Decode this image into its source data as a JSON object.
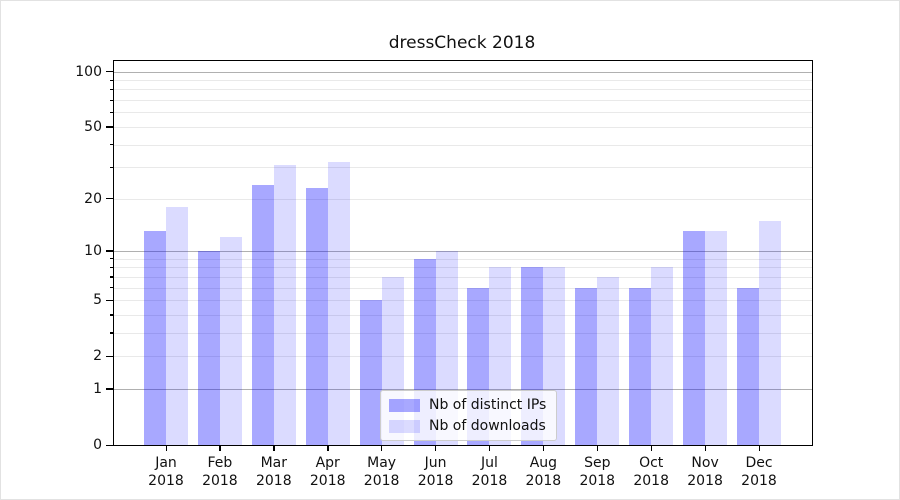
{
  "title": "dressCheck 2018",
  "chart_data": {
    "type": "bar",
    "title": "dressCheck 2018",
    "categories": [
      "Jan",
      "Feb",
      "Mar",
      "Apr",
      "May",
      "Jun",
      "Jul",
      "Aug",
      "Sep",
      "Oct",
      "Nov",
      "Dec"
    ],
    "category_year": "2018",
    "series": [
      {
        "name": "Nb of distinct IPs",
        "color": "rgba(0,0,255,0.34)",
        "values": [
          13,
          10,
          24,
          23,
          5,
          9,
          6,
          8,
          6,
          6,
          13,
          6
        ]
      },
      {
        "name": "Nb of downloads",
        "color": "rgba(0,0,255,0.14)",
        "values": [
          18,
          12,
          31,
          32,
          7,
          10,
          8,
          8,
          7,
          8,
          13,
          15
        ]
      }
    ],
    "yscale": "log10(1+v)",
    "ylim": [
      0,
      110
    ],
    "yticks": [
      0,
      1,
      2,
      5,
      10,
      20,
      50,
      100
    ],
    "grid": {
      "major_lines": [
        1,
        10,
        100
      ],
      "minor_lines": [
        2,
        3,
        4,
        5,
        6,
        7,
        8,
        9,
        20,
        30,
        40,
        50,
        60,
        70,
        80,
        90
      ]
    },
    "legend": {
      "position": "lower center"
    }
  }
}
